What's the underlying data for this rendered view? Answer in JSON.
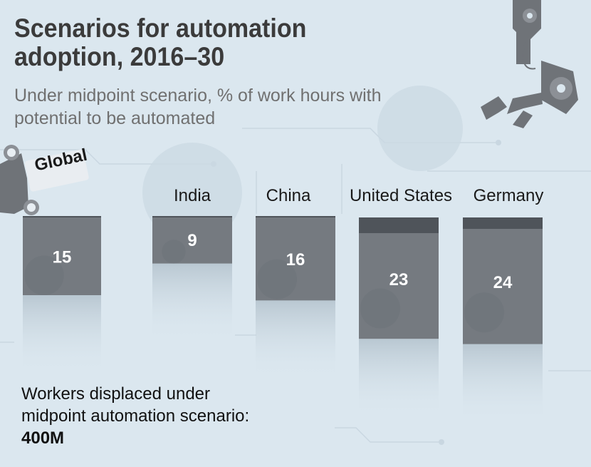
{
  "header": {
    "title": "Scenarios for automation adoption, 2016–30",
    "subtitle": "Under midpoint scenario, % of work hours with potential to be automated"
  },
  "chart_data": {
    "type": "bar",
    "categories": [
      "Global",
      "India",
      "China",
      "United States",
      "Germany"
    ],
    "values": [
      15,
      9,
      16,
      23,
      24
    ],
    "value_labels": [
      "15",
      "9",
      "16",
      "23",
      "24"
    ],
    "ylim": [
      0,
      30
    ]
  },
  "footnote": {
    "text": "Workers displaced under midpoint automation scenario: ",
    "value": "400M"
  },
  "colors": {
    "background": "#dbe7ef",
    "bar": "#757a80",
    "bar_top": "#4f545a",
    "title": "#3b3b3b",
    "subtitle": "#707070",
    "robot": "#6f7378"
  }
}
